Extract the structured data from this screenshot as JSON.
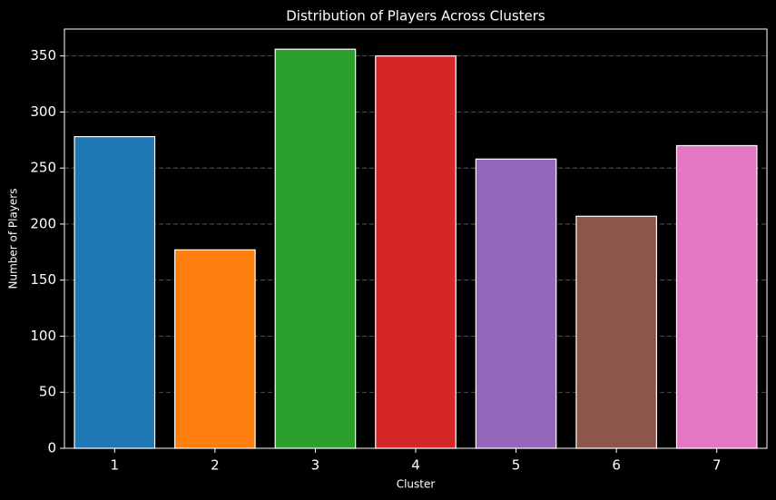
{
  "chart_data": {
    "type": "bar",
    "title": "Distribution of Players Across Clusters",
    "x_label": "Cluster",
    "y_label": "Number of Players",
    "categories": [
      "1",
      "2",
      "3",
      "4",
      "5",
      "6",
      "7"
    ],
    "values": [
      278,
      177,
      356,
      350,
      258,
      207,
      270
    ],
    "colors": [
      "#1f77b4",
      "#ff7f0e",
      "#2ca02c",
      "#d62728",
      "#9467bd",
      "#8c564b",
      "#e377c2"
    ],
    "ylim": [
      0,
      374
    ],
    "yticks": [
      0,
      50,
      100,
      150,
      200,
      250,
      300,
      350
    ],
    "grid": true
  }
}
